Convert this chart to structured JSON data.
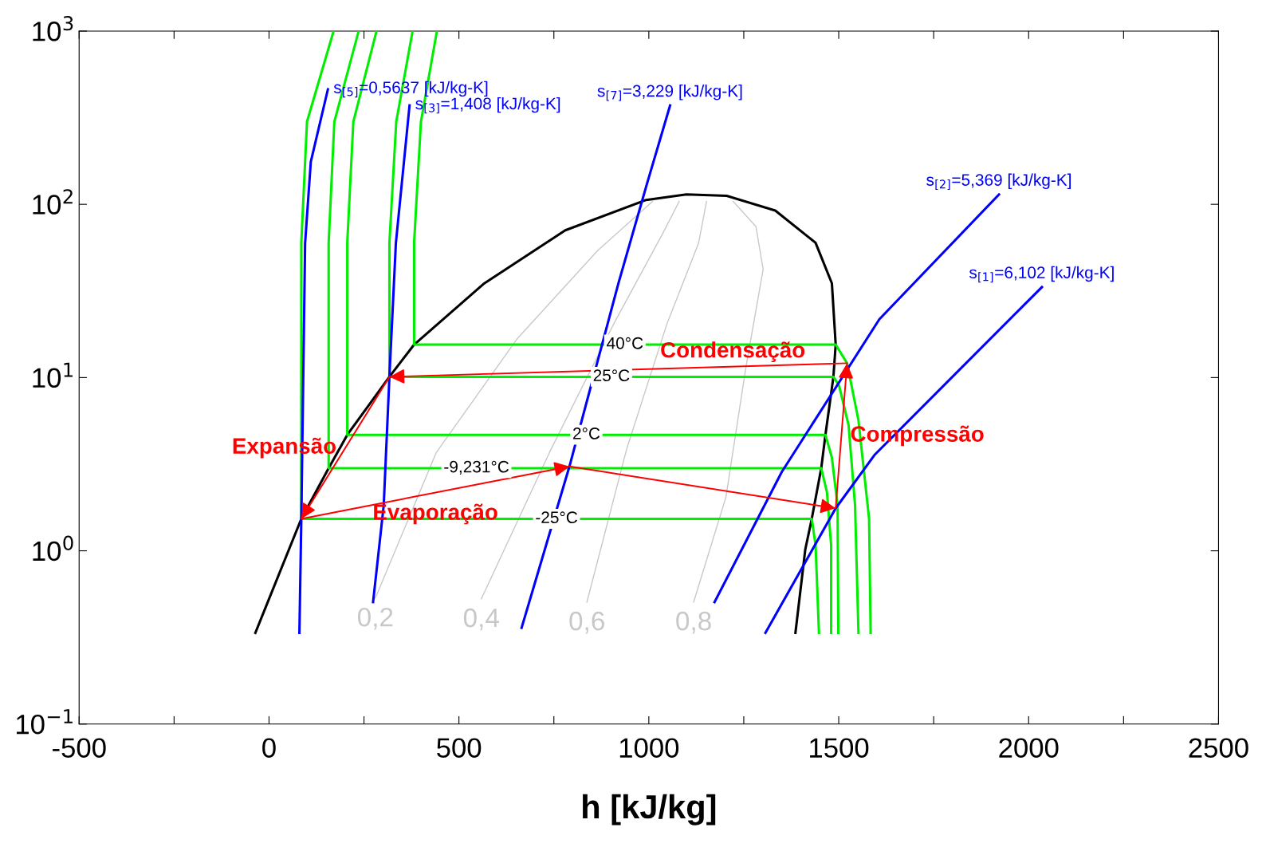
{
  "chart_data": {
    "type": "line",
    "xlabel": "h [kJ/kg]",
    "xlim": [
      -500,
      2500
    ],
    "ylim": [
      0.1,
      1000
    ],
    "log": "y",
    "xticks": [
      -500,
      {
        "value": -250,
        "label": null
      },
      0,
      {
        "value": 250,
        "label": null
      },
      500,
      {
        "value": 750,
        "label": null
      },
      1000,
      {
        "value": 1250,
        "label": null
      },
      1500,
      {
        "value": 1750,
        "label": null
      },
      2000,
      {
        "value": 2250,
        "label": null
      },
      2500
    ],
    "yticks": [
      {
        "value": 0.1,
        "label": "10$^{−1}$"
      },
      {
        "value": 1,
        "label": "10$^{0}$"
      },
      {
        "value": 10,
        "label": "10$^{1}$"
      },
      {
        "value": 100,
        "label": "10$^{2}$"
      },
      {
        "value": 1000,
        "label": "10$^{3}$"
      }
    ],
    "grid": false,
    "legend": false,
    "series": [
      {
        "color": "#c8c8c8",
        "x": [
          1010,
          865,
          652,
          440,
          280
        ],
        "values": [
          104,
          54,
          16.6,
          3.68,
          0.533
        ],
        "name": "0,2"
      },
      {
        "color": "#c8c8c8",
        "x": [
          1080,
          1035,
          908,
          738,
          559
        ],
        "values": [
          104,
          66.9,
          20.5,
          3.68,
          0.528
        ],
        "name": "0,4"
      },
      {
        "color": "#c8c8c8",
        "x": [
          1152,
          1131,
          1048,
          942,
          837
        ],
        "values": [
          104,
          59.7,
          20.5,
          3.89,
          0.506
        ],
        "name": "0,6"
      },
      {
        "color": "#c8c8c8",
        "x": [
          1222,
          1282,
          1301,
          1256,
          1203,
          1118
        ],
        "values": [
          104,
          74.5,
          42.2,
          11.6,
          2.04,
          0.506
        ],
        "name": "0,8"
      },
      {
        "color": "#000000",
        "x": [
          -36,
          85,
          157,
          206,
          317,
          382,
          567,
          780,
          993,
          1099,
          1205,
          1333,
          1439,
          1482,
          1492,
          1486,
          1465,
          1454,
          1429,
          1412,
          1386
        ],
        "values": [
          0.336,
          1.53,
          3.0,
          4.67,
          10.1,
          15.5,
          35,
          70.8,
          106,
          114,
          112,
          92,
          60,
          35,
          15.5,
          10.1,
          4.67,
          3.0,
          1.53,
          1.02,
          0.336
        ]
      },
      {
        "color": "#00ee00",
        "name": "40°C",
        "x": [
          442,
          400,
          382,
          382,
          1492,
          1522,
          1552,
          1580,
          1584
        ],
        "values": [
          1000,
          300,
          60,
          15.5,
          15.5,
          12.1,
          5.66,
          1.53,
          0.336
        ]
      },
      {
        "color": "#00ee00",
        "name": "25°C",
        "x": [
          378,
          335,
          317,
          317,
          1486,
          1501,
          1526,
          1543,
          1552
        ],
        "values": [
          1000,
          300,
          60,
          10.1,
          10.1,
          8.98,
          5.31,
          1.83,
          0.336
        ]
      },
      {
        "color": "#00ee00",
        "name": "2°C",
        "x": [
          283,
          222,
          206,
          206,
          1465,
          1482,
          1497,
          1499
        ],
        "values": [
          1000,
          300,
          60,
          4.67,
          4.67,
          3.45,
          1.83,
          0.336
        ]
      },
      {
        "color": "#00ee00",
        "name": "-9,231°C",
        "x": [
          236,
          172,
          157,
          157,
          1454,
          1469,
          1480,
          1480
        ],
        "values": [
          1000,
          300,
          60,
          3.0,
          3.0,
          2.18,
          1.08,
          0.336
        ]
      },
      {
        "color": "#00ee00",
        "name": "-25°C",
        "x": [
          170,
          100,
          85,
          85,
          1429,
          1439,
          1448
        ],
        "values": [
          1000,
          300,
          60,
          1.53,
          1.53,
          1.08,
          0.336
        ]
      },
      {
        "color": "#0000ff",
        "name": "s$_{[5]}$=0,5637 [kJ/kg-K]",
        "x": [
          80,
          85,
          95,
          110,
          155
        ],
        "values": [
          0.336,
          1.53,
          59.7,
          176,
          461
        ]
      },
      {
        "color": "#0000ff",
        "name": "s$_{[3]}$=1,408 [kJ/kg-K]",
        "x": [
          274,
          302,
          317,
          334,
          370
        ],
        "values": [
          0.506,
          1.83,
          10.1,
          59.7,
          372
        ]
      },
      {
        "color": "#0000ff",
        "name": "s$_{[7]}$=3,229 [kJ/kg-K]",
        "x": [
          665,
          791,
          920,
          995,
          1056
        ],
        "values": [
          0.359,
          3.07,
          35,
          131,
          372
        ]
      },
      {
        "color": "#0000ff",
        "name": "s$_{[2]}$=5,369 [kJ/kg-K]",
        "x": [
          1173,
          1350,
          1607,
          1922
        ],
        "values": [
          0.506,
          2.85,
          21.7,
          114
        ]
      },
      {
        "color": "#0000ff",
        "name": "s$_{[1]}$=6,102 [kJ/kg-K]",
        "x": [
          1307,
          1492,
          1594,
          2035
        ],
        "values": [
          0.336,
          1.76,
          3.57,
          33.3
        ]
      },
      {
        "color": "#ff0000",
        "x": [
          85,
          791,
          1492,
          1522,
          317,
          85
        ],
        "values": [
          1.53,
          3.07,
          1.76,
          12.1,
          10.1,
          1.53
        ]
      }
    ],
    "annotations": [
      {
        "text": "Expansão",
        "x": 201,
        "y": 3.93
      },
      {
        "text": "Evaporação",
        "x": 438,
        "y": 2.17
      },
      {
        "text": "Condensação",
        "x": 1221,
        "y": 11.57
      },
      {
        "text": "Compressão",
        "x": 1507,
        "y": 4.61
      }
    ]
  }
}
